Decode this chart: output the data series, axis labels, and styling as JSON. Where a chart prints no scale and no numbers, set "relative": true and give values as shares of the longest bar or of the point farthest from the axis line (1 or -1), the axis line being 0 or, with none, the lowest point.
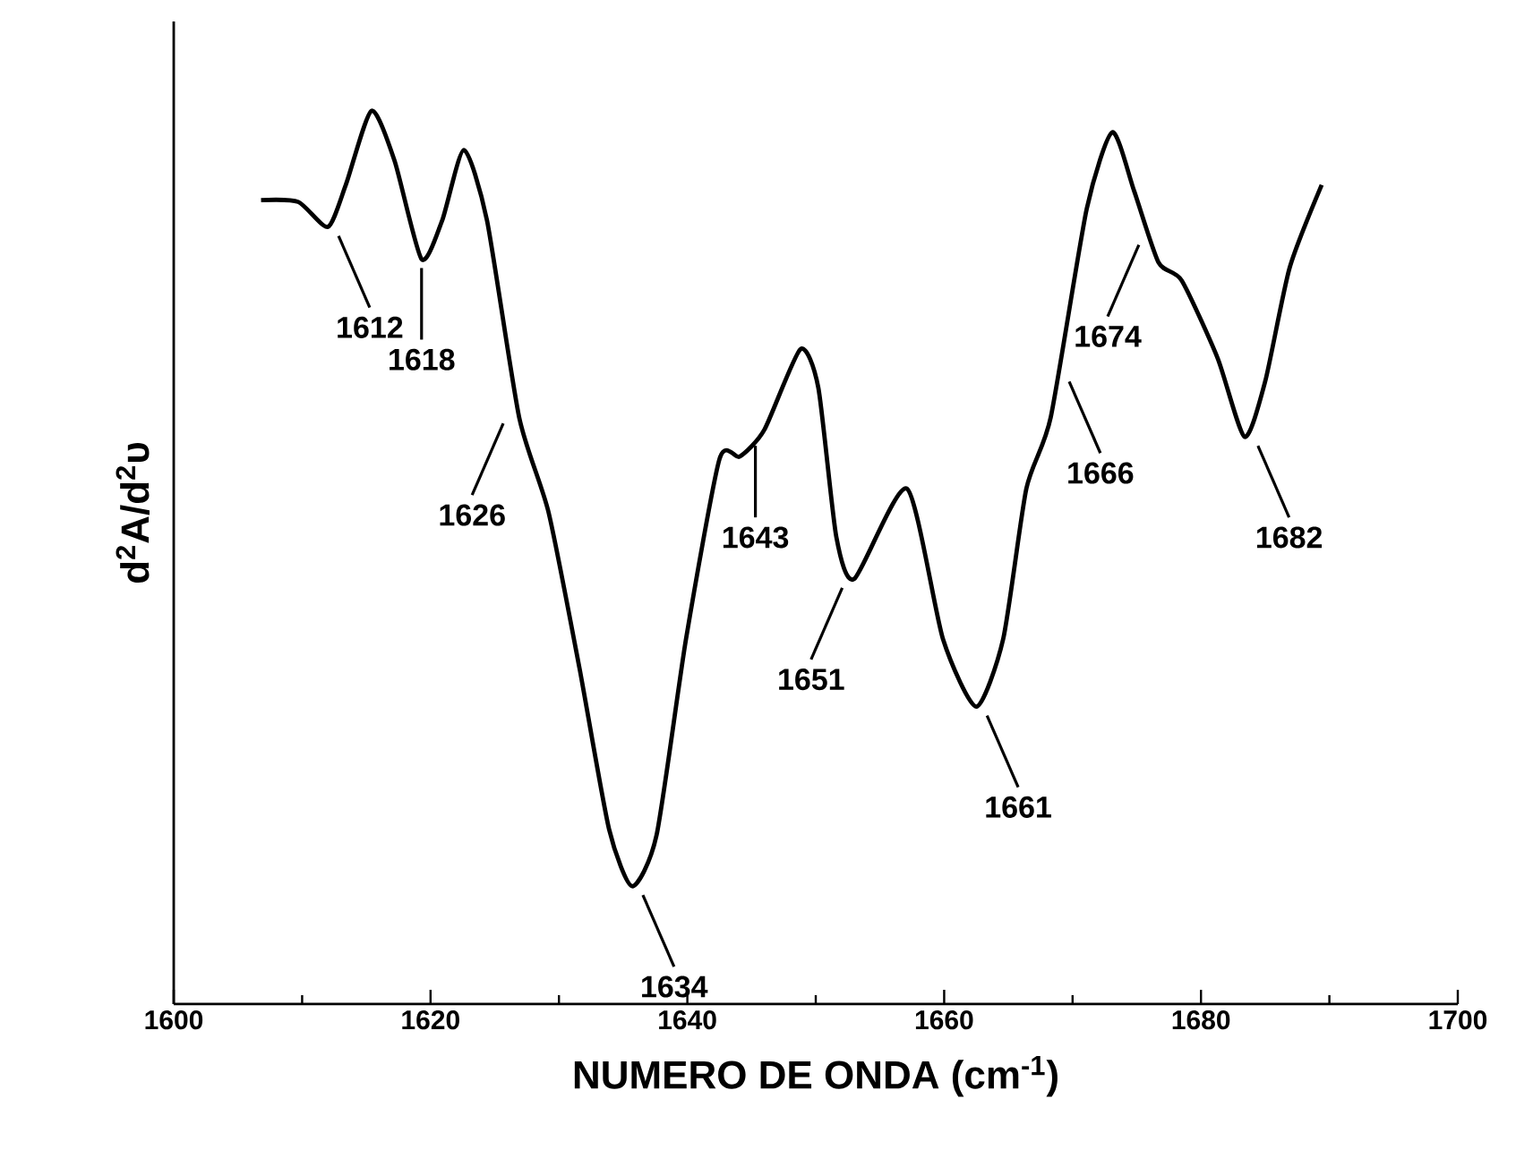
{
  "chart_data": {
    "type": "line",
    "relative": true,
    "xlabel": "NUMERO DE ONDA (cm$^{-1}$)",
    "ylabel": "d$^{2}$A/d$^{2}$υ",
    "xlim": [
      1600,
      1700
    ],
    "xticks": [
      1600,
      1620,
      1640,
      1660,
      1680,
      1700
    ],
    "color": "#000000",
    "marker": "none",
    "line_style": "solid",
    "grid": false,
    "x": [
      1606.8,
      1609.7,
      1612.0,
      1613.4,
      1615.4,
      1617.2,
      1619.3,
      1620.9,
      1622.6,
      1624.4,
      1626.9,
      1629.2,
      1631.6,
      1633.9,
      1635.7,
      1637.6,
      1639.9,
      1642.5,
      1644.1,
      1646.0,
      1648.8,
      1650.2,
      1651.6,
      1653.0,
      1657.1,
      1659.9,
      1662.5,
      1664.6,
      1666.4,
      1668.3,
      1671.1,
      1673.1,
      1674.8,
      1676.7,
      1678.5,
      1681.3,
      1683.4,
      1685.0,
      1686.9,
      1689.4
    ],
    "values": [
      0.9,
      0.898,
      0.87,
      0.917,
      1.0,
      0.944,
      0.834,
      0.877,
      0.956,
      0.877,
      0.657,
      0.55,
      0.376,
      0.196,
      0.132,
      0.189,
      0.409,
      0.61,
      0.613,
      0.643,
      0.733,
      0.69,
      0.523,
      0.476,
      0.577,
      0.409,
      0.333,
      0.409,
      0.577,
      0.657,
      0.89,
      0.976,
      0.91,
      0.83,
      0.81,
      0.723,
      0.635,
      0.697,
      0.824,
      0.917
    ],
    "annotations": [
      {
        "text": "1612",
        "x": 1612.0,
        "y": 0.87
      },
      {
        "text": "1618",
        "x": 1619.3,
        "y": 0.834
      },
      {
        "text": "1626",
        "x": 1626.5,
        "y": 0.66
      },
      {
        "text": "1634",
        "x": 1635.7,
        "y": 0.132
      },
      {
        "text": "1643",
        "x": 1645.3,
        "y": 0.635
      },
      {
        "text": "1651",
        "x": 1652.9,
        "y": 0.476
      },
      {
        "text": "1661",
        "x": 1662.5,
        "y": 0.333
      },
      {
        "text": "1666",
        "x": 1668.9,
        "y": 0.707
      },
      {
        "text": "1674",
        "x": 1676.0,
        "y": 0.86
      },
      {
        "text": "1682",
        "x": 1683.6,
        "y": 0.635
      }
    ]
  }
}
